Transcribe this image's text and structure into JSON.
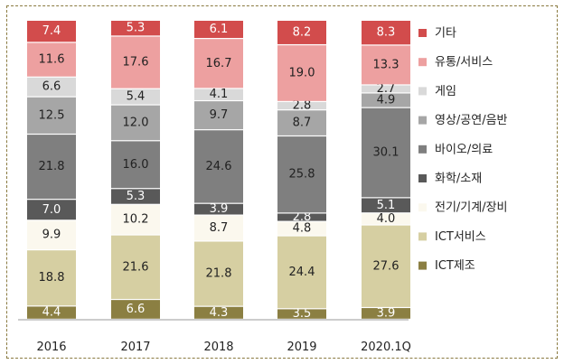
{
  "chart_data": {
    "type": "bar",
    "stacked": true,
    "categories": [
      "2016",
      "2017",
      "2018",
      "2019",
      "2020.1Q"
    ],
    "series": [
      {
        "name": "ICT제조",
        "color": "#8b7f42",
        "text_color": "#ffffff",
        "values": [
          4.4,
          6.6,
          4.3,
          3.5,
          3.9
        ]
      },
      {
        "name": "ICT서비스",
        "color": "#d6cfa2",
        "text_color": "#222222",
        "values": [
          18.8,
          21.6,
          21.8,
          24.4,
          27.6
        ]
      },
      {
        "name": "전기/기계/장비",
        "color": "#fbf8ee",
        "text_color": "#222222",
        "values": [
          9.9,
          10.2,
          8.7,
          4.8,
          4.0
        ]
      },
      {
        "name": "화학/소재",
        "color": "#595959",
        "text_color": "#ffffff",
        "values": [
          7.0,
          5.3,
          3.9,
          2.8,
          5.1
        ]
      },
      {
        "name": "바이오/의료",
        "color": "#7f7f7f",
        "text_color": "#222222",
        "values": [
          21.8,
          16.0,
          24.6,
          25.8,
          30.1
        ]
      },
      {
        "name": "영상/공연/음반",
        "color": "#a6a6a6",
        "text_color": "#222222",
        "values": [
          12.5,
          12.0,
          9.7,
          8.7,
          4.9
        ]
      },
      {
        "name": "게임",
        "color": "#d9d9d9",
        "text_color": "#222222",
        "values": [
          6.6,
          5.4,
          4.1,
          2.8,
          2.7
        ]
      },
      {
        "name": "유통/서비스",
        "color": "#eda0a0",
        "text_color": "#222222",
        "values": [
          11.6,
          17.6,
          16.7,
          19.0,
          13.3
        ]
      },
      {
        "name": "기타",
        "color": "#d24c4c",
        "text_color": "#ffffff",
        "values": [
          7.4,
          5.3,
          6.1,
          8.2,
          8.3
        ]
      }
    ],
    "legend_position": "right",
    "grid": false
  }
}
